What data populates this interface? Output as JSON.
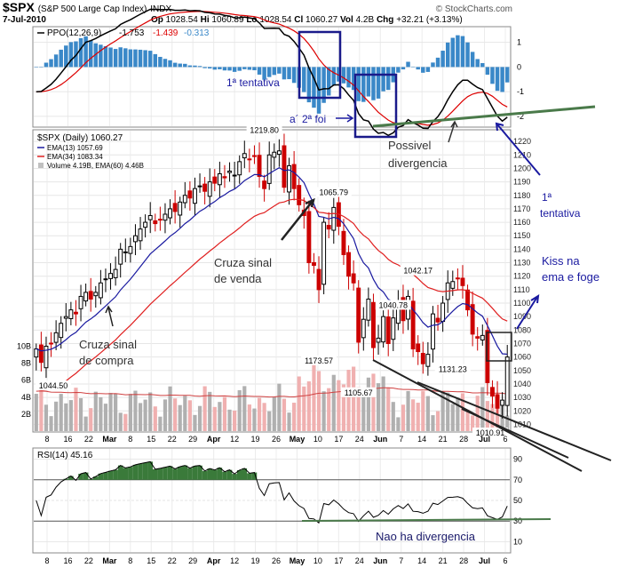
{
  "header": {
    "symbol": "$SPX",
    "name": "(S&P 500 Large Cap Index)",
    "exchange": "INDX",
    "date": "7-Jul-2010",
    "op_label": "Op",
    "op": "1028.54",
    "hi_label": "Hi",
    "hi": "1060.89",
    "lo_label": "Lo",
    "lo": "1028.54",
    "cl_label": "Cl",
    "cl": "1060.27",
    "vol_label": "Vol",
    "vol": "4.2B",
    "chg_label": "Chg",
    "chg": "+32.21 (+3.13%)",
    "credit": "© StockCharts.com"
  },
  "ppo_panel": {
    "legend_prefix": "PPO(12,26,9)",
    "ppo": "-1.753",
    "signal": "-1.439",
    "hist": "-0.313",
    "y_ticks": [
      "1",
      "0",
      "-1",
      "-2"
    ],
    "colors": {
      "ppo": "#000000",
      "signal": "#dd0000",
      "hist": "#3a88c8"
    }
  },
  "price_panel": {
    "legend_title": "$SPX (Daily) 1060.27",
    "ema13_label": "EMA(13) 1057.69",
    "ema34_label": "EMA(34) 1083.34",
    "volume_label": "Volume 4.19B, EMA(60) 4.46B",
    "price_ticks": [
      "1220",
      "1210",
      "1200",
      "1190",
      "1180",
      "1170",
      "1160",
      "1150",
      "1140",
      "1130",
      "1120",
      "1110",
      "1100",
      "1090",
      "1080",
      "1070",
      "1060",
      "1050",
      "1040",
      "1030",
      "1020",
      "1010"
    ],
    "volume_ticks": [
      "10B",
      "8B",
      "6B",
      "4B",
      "2B"
    ],
    "price_labels": [
      "1044.50",
      "1219.80",
      "1173.57",
      "1065.79",
      "1105.67",
      "1131.23",
      "1040.78",
      "1042.17",
      "1010.91"
    ],
    "colors": {
      "up": "#000000",
      "down": "#cc0000",
      "ema13": "#1a1aa0",
      "ema34": "#e02020",
      "vol_up": "#b0b0b0",
      "vol_down": "#f0b0b0"
    }
  },
  "rsi_panel": {
    "legend": "RSI(14) 45.16",
    "y_ticks": [
      "90",
      "70",
      "50",
      "30",
      "10"
    ],
    "color": "#000000",
    "fill": "#3a7a3a"
  },
  "x_axis": {
    "labels": [
      "8",
      "16",
      "22",
      "Mar",
      "8",
      "15",
      "22",
      "29",
      "Apr",
      "12",
      "19",
      "26",
      "May",
      "10",
      "17",
      "24",
      "Jun",
      "7",
      "14",
      "21",
      "28",
      "Jul",
      "6"
    ]
  },
  "annotations": {
    "primeira_tentativa": "1ª tentativa",
    "segunda_foi": "a´ 2ª foi",
    "possivel": "Possivel",
    "divergencia": "divergencia",
    "right_tentativa_num": "1ª",
    "right_tentativa": "tentativa",
    "kiss1": "Kiss na",
    "kiss2": "ema e foge",
    "cruza_venda1": "Cruza sinal",
    "cruza_venda2": "de venda",
    "cruza_compra1": "Cruza sinal",
    "cruza_compra2": "de compra",
    "nao_ha": "Nao ha divergencia"
  },
  "chart_data": {
    "type": "candlestick",
    "title": "$SPX (S&P 500 Large Cap Index) Daily",
    "x_range": [
      "2010-02-05",
      "2010-07-07"
    ],
    "price_ylim": [
      1005,
      1228
    ],
    "price_extremes": [
      {
        "date": "2010-02-05",
        "value": 1044.5
      },
      {
        "date": "2010-04-26",
        "value": 1219.8
      },
      {
        "date": "2010-05-06",
        "value": 1065.79
      },
      {
        "date": "2010-05-13",
        "value": 1173.57
      },
      {
        "date": "2010-05-25",
        "value": 1040.78
      },
      {
        "date": "2010-06-08",
        "value": 1042.17
      },
      {
        "date": "2010-06-04",
        "value": 1105.67
      },
      {
        "date": "2010-06-21",
        "value": 1131.23
      },
      {
        "date": "2010-07-01",
        "value": 1010.91
      }
    ],
    "close_series": [
      1066,
      1056,
      1068,
      1070,
      1078,
      1085,
      1090,
      1095,
      1092,
      1105,
      1108,
      1103,
      1108,
      1115,
      1118,
      1122,
      1125,
      1140,
      1138,
      1142,
      1150,
      1155,
      1160,
      1165,
      1159,
      1162,
      1166,
      1170,
      1168,
      1175,
      1180,
      1178,
      1185,
      1187,
      1183,
      1190,
      1189,
      1196,
      1193,
      1198,
      1195,
      1205,
      1211,
      1207,
      1209,
      1194,
      1185,
      1210,
      1212,
      1213,
      1186,
      1202,
      1185,
      1173,
      1165,
      1130,
      1128,
      1110,
      1160,
      1155,
      1171,
      1157,
      1136,
      1120,
      1115,
      1071,
      1088,
      1103,
      1067,
      1074,
      1090,
      1070,
      1089,
      1102,
      1087,
      1105,
      1066,
      1064,
      1055,
      1062,
      1092,
      1086,
      1100,
      1115,
      1116,
      1118,
      1113,
      1095,
      1077,
      1074,
      1076,
      1041,
      1031,
      1022,
      1028,
      1060
    ],
    "ema13_last": 1057.69,
    "ema34_last": 1083.34,
    "volume_ylim": [
      0,
      11
    ],
    "volume_ema60_last": 4.46,
    "ppo": {
      "last": -1.753,
      "signal_last": -1.439,
      "hist_last": -0.313,
      "ylim": [
        -2.4,
        1.6
      ]
    },
    "rsi": {
      "last": 45.16,
      "ylim": [
        0,
        100
      ],
      "levels": [
        70,
        30
      ]
    },
    "x_tick_labels": [
      "8",
      "16",
      "22",
      "Mar",
      "8",
      "15",
      "22",
      "29",
      "Apr",
      "12",
      "19",
      "26",
      "May",
      "10",
      "17",
      "24",
      "Jun",
      "7",
      "14",
      "21",
      "28",
      "Jul",
      "6"
    ]
  }
}
